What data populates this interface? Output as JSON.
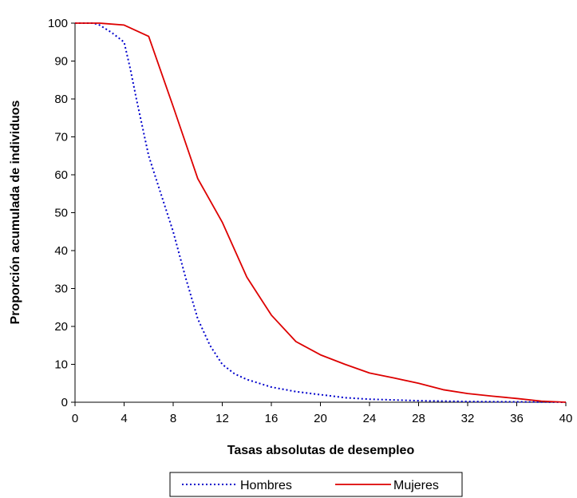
{
  "chart_data": {
    "type": "line",
    "xlabel": "Tasas absolutas de desempleo",
    "ylabel": "Proporción acumulada de individuos",
    "xlim": [
      0,
      40
    ],
    "ylim": [
      0,
      100
    ],
    "x_ticks": [
      "0",
      "4",
      "8",
      "12",
      "16",
      "20",
      "24",
      "28",
      "32",
      "36",
      "40"
    ],
    "y_ticks": [
      "0",
      "10",
      "20",
      "30",
      "40",
      "50",
      "60",
      "70",
      "80",
      "90",
      "100"
    ],
    "grid": false,
    "legend_position": "bottom",
    "series": [
      {
        "name": "Hombres",
        "color": "#0000cc",
        "style": "dotted",
        "points": [
          [
            0,
            100
          ],
          [
            1.5,
            100
          ],
          [
            2,
            99.5
          ],
          [
            3,
            97.5
          ],
          [
            4,
            95
          ],
          [
            4.5,
            88
          ],
          [
            5,
            80
          ],
          [
            6,
            65
          ],
          [
            7,
            55
          ],
          [
            8,
            45
          ],
          [
            9,
            33
          ],
          [
            10,
            22
          ],
          [
            11,
            15
          ],
          [
            12,
            10
          ],
          [
            13,
            7.5
          ],
          [
            14,
            6
          ],
          [
            16,
            4
          ],
          [
            18,
            2.8
          ],
          [
            20,
            2
          ],
          [
            22,
            1.2
          ],
          [
            24,
            0.8
          ],
          [
            28,
            0.4
          ],
          [
            32,
            0.2
          ],
          [
            36,
            0.1
          ],
          [
            40,
            0
          ]
        ]
      },
      {
        "name": "Mujeres",
        "color": "#dd0000",
        "style": "solid",
        "points": [
          [
            0,
            100
          ],
          [
            2,
            100
          ],
          [
            4,
            99.5
          ],
          [
            6,
            96.5
          ],
          [
            8,
            78
          ],
          [
            10,
            59
          ],
          [
            12,
            47.5
          ],
          [
            14,
            33
          ],
          [
            16,
            23
          ],
          [
            18,
            16
          ],
          [
            20,
            12.5
          ],
          [
            22,
            10
          ],
          [
            24,
            7.7
          ],
          [
            26,
            6.4
          ],
          [
            28,
            5
          ],
          [
            30,
            3.3
          ],
          [
            32,
            2.3
          ],
          [
            34,
            1.6
          ],
          [
            36,
            1
          ],
          [
            38,
            0.3
          ],
          [
            40,
            0
          ]
        ]
      }
    ]
  }
}
